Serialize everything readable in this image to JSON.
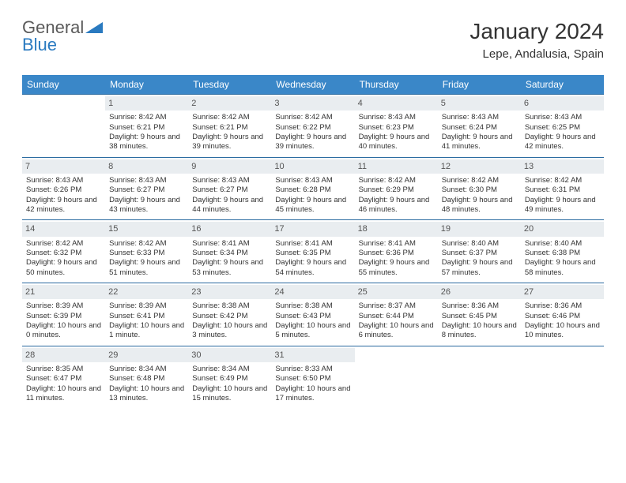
{
  "brand": {
    "part1": "General",
    "part2": "Blue"
  },
  "title": "January 2024",
  "location": "Lepe, Andalusia, Spain",
  "colors": {
    "header_bg": "#3a87c8",
    "header_text": "#ffffff",
    "daynum_bg": "#e9edf0",
    "border": "#2a6aa0",
    "logo_gray": "#5a5a5a",
    "logo_blue": "#2a7ac0"
  },
  "weekdays": [
    "Sunday",
    "Monday",
    "Tuesday",
    "Wednesday",
    "Thursday",
    "Friday",
    "Saturday"
  ],
  "weeks": [
    [
      null,
      {
        "n": "1",
        "sr": "Sunrise: 8:42 AM",
        "ss": "Sunset: 6:21 PM",
        "dl": "Daylight: 9 hours and 38 minutes."
      },
      {
        "n": "2",
        "sr": "Sunrise: 8:42 AM",
        "ss": "Sunset: 6:21 PM",
        "dl": "Daylight: 9 hours and 39 minutes."
      },
      {
        "n": "3",
        "sr": "Sunrise: 8:42 AM",
        "ss": "Sunset: 6:22 PM",
        "dl": "Daylight: 9 hours and 39 minutes."
      },
      {
        "n": "4",
        "sr": "Sunrise: 8:43 AM",
        "ss": "Sunset: 6:23 PM",
        "dl": "Daylight: 9 hours and 40 minutes."
      },
      {
        "n": "5",
        "sr": "Sunrise: 8:43 AM",
        "ss": "Sunset: 6:24 PM",
        "dl": "Daylight: 9 hours and 41 minutes."
      },
      {
        "n": "6",
        "sr": "Sunrise: 8:43 AM",
        "ss": "Sunset: 6:25 PM",
        "dl": "Daylight: 9 hours and 42 minutes."
      }
    ],
    [
      {
        "n": "7",
        "sr": "Sunrise: 8:43 AM",
        "ss": "Sunset: 6:26 PM",
        "dl": "Daylight: 9 hours and 42 minutes."
      },
      {
        "n": "8",
        "sr": "Sunrise: 8:43 AM",
        "ss": "Sunset: 6:27 PM",
        "dl": "Daylight: 9 hours and 43 minutes."
      },
      {
        "n": "9",
        "sr": "Sunrise: 8:43 AM",
        "ss": "Sunset: 6:27 PM",
        "dl": "Daylight: 9 hours and 44 minutes."
      },
      {
        "n": "10",
        "sr": "Sunrise: 8:43 AM",
        "ss": "Sunset: 6:28 PM",
        "dl": "Daylight: 9 hours and 45 minutes."
      },
      {
        "n": "11",
        "sr": "Sunrise: 8:42 AM",
        "ss": "Sunset: 6:29 PM",
        "dl": "Daylight: 9 hours and 46 minutes."
      },
      {
        "n": "12",
        "sr": "Sunrise: 8:42 AM",
        "ss": "Sunset: 6:30 PM",
        "dl": "Daylight: 9 hours and 48 minutes."
      },
      {
        "n": "13",
        "sr": "Sunrise: 8:42 AM",
        "ss": "Sunset: 6:31 PM",
        "dl": "Daylight: 9 hours and 49 minutes."
      }
    ],
    [
      {
        "n": "14",
        "sr": "Sunrise: 8:42 AM",
        "ss": "Sunset: 6:32 PM",
        "dl": "Daylight: 9 hours and 50 minutes."
      },
      {
        "n": "15",
        "sr": "Sunrise: 8:42 AM",
        "ss": "Sunset: 6:33 PM",
        "dl": "Daylight: 9 hours and 51 minutes."
      },
      {
        "n": "16",
        "sr": "Sunrise: 8:41 AM",
        "ss": "Sunset: 6:34 PM",
        "dl": "Daylight: 9 hours and 53 minutes."
      },
      {
        "n": "17",
        "sr": "Sunrise: 8:41 AM",
        "ss": "Sunset: 6:35 PM",
        "dl": "Daylight: 9 hours and 54 minutes."
      },
      {
        "n": "18",
        "sr": "Sunrise: 8:41 AM",
        "ss": "Sunset: 6:36 PM",
        "dl": "Daylight: 9 hours and 55 minutes."
      },
      {
        "n": "19",
        "sr": "Sunrise: 8:40 AM",
        "ss": "Sunset: 6:37 PM",
        "dl": "Daylight: 9 hours and 57 minutes."
      },
      {
        "n": "20",
        "sr": "Sunrise: 8:40 AM",
        "ss": "Sunset: 6:38 PM",
        "dl": "Daylight: 9 hours and 58 minutes."
      }
    ],
    [
      {
        "n": "21",
        "sr": "Sunrise: 8:39 AM",
        "ss": "Sunset: 6:39 PM",
        "dl": "Daylight: 10 hours and 0 minutes."
      },
      {
        "n": "22",
        "sr": "Sunrise: 8:39 AM",
        "ss": "Sunset: 6:41 PM",
        "dl": "Daylight: 10 hours and 1 minute."
      },
      {
        "n": "23",
        "sr": "Sunrise: 8:38 AM",
        "ss": "Sunset: 6:42 PM",
        "dl": "Daylight: 10 hours and 3 minutes."
      },
      {
        "n": "24",
        "sr": "Sunrise: 8:38 AM",
        "ss": "Sunset: 6:43 PM",
        "dl": "Daylight: 10 hours and 5 minutes."
      },
      {
        "n": "25",
        "sr": "Sunrise: 8:37 AM",
        "ss": "Sunset: 6:44 PM",
        "dl": "Daylight: 10 hours and 6 minutes."
      },
      {
        "n": "26",
        "sr": "Sunrise: 8:36 AM",
        "ss": "Sunset: 6:45 PM",
        "dl": "Daylight: 10 hours and 8 minutes."
      },
      {
        "n": "27",
        "sr": "Sunrise: 8:36 AM",
        "ss": "Sunset: 6:46 PM",
        "dl": "Daylight: 10 hours and 10 minutes."
      }
    ],
    [
      {
        "n": "28",
        "sr": "Sunrise: 8:35 AM",
        "ss": "Sunset: 6:47 PM",
        "dl": "Daylight: 10 hours and 11 minutes."
      },
      {
        "n": "29",
        "sr": "Sunrise: 8:34 AM",
        "ss": "Sunset: 6:48 PM",
        "dl": "Daylight: 10 hours and 13 minutes."
      },
      {
        "n": "30",
        "sr": "Sunrise: 8:34 AM",
        "ss": "Sunset: 6:49 PM",
        "dl": "Daylight: 10 hours and 15 minutes."
      },
      {
        "n": "31",
        "sr": "Sunrise: 8:33 AM",
        "ss": "Sunset: 6:50 PM",
        "dl": "Daylight: 10 hours and 17 minutes."
      },
      null,
      null,
      null
    ]
  ]
}
